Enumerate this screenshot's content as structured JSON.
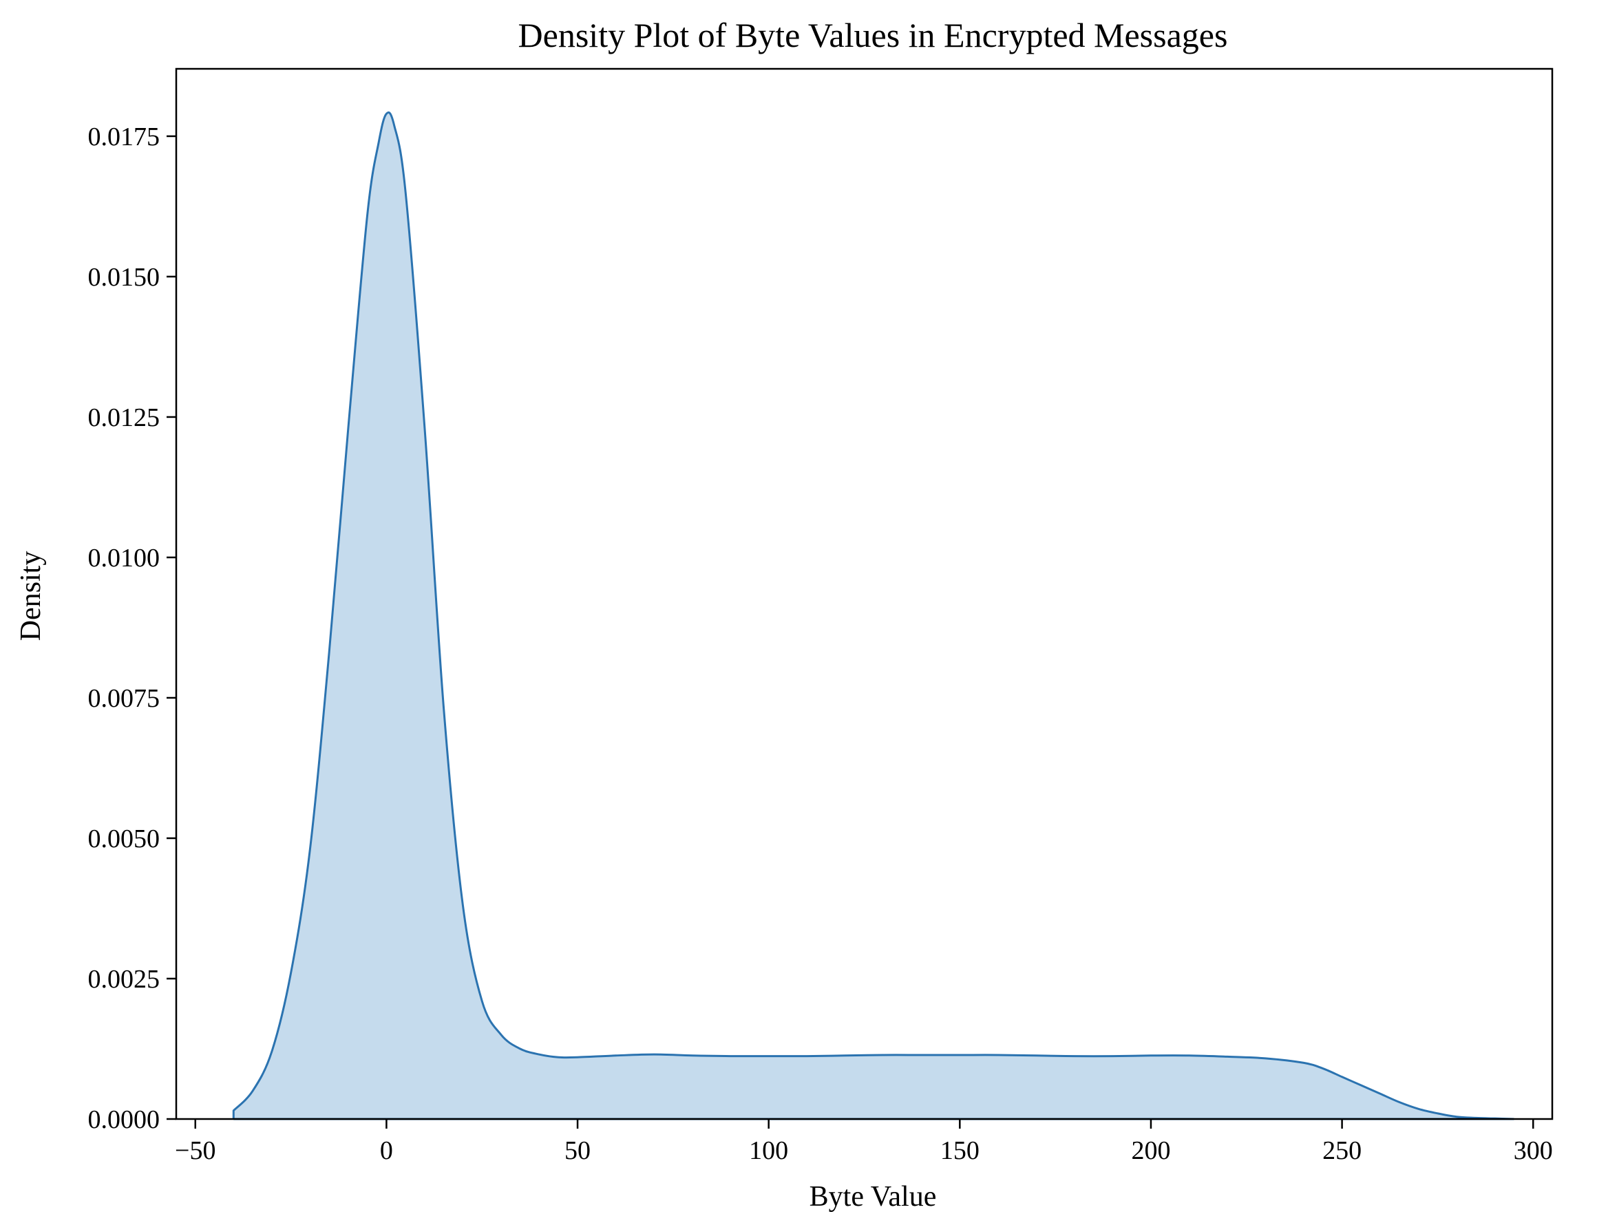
{
  "chart_data": {
    "type": "area",
    "title": "Density Plot of Byte Values in Encrypted Messages",
    "xlabel": "Byte Value",
    "ylabel": "Density",
    "xlim": [
      -55,
      305
    ],
    "ylim": [
      0,
      0.0187
    ],
    "x_ticks": [
      -50,
      0,
      50,
      100,
      150,
      200,
      250,
      300
    ],
    "x_tick_labels": [
      "−50",
      "0",
      "50",
      "100",
      "150",
      "200",
      "250",
      "300"
    ],
    "y_ticks": [
      0,
      0.0025,
      0.005,
      0.0075,
      0.01,
      0.0125,
      0.015,
      0.0175
    ],
    "y_tick_labels": [
      "0.0000",
      "0.0025",
      "0.0050",
      "0.0075",
      "0.0100",
      "0.0125",
      "0.0150",
      "0.0175"
    ],
    "grid": false,
    "legend": "none",
    "colors": {
      "line": "#2b73b0",
      "fill": "#c5dbed",
      "axis": "#000000"
    },
    "series": [
      {
        "x": [
          -40,
          -35,
          -30,
          -25,
          -20,
          -15,
          -10,
          -5,
          -2,
          0,
          2,
          5,
          10,
          15,
          20,
          25,
          30,
          35,
          40,
          45,
          50,
          60,
          70,
          80,
          90,
          100,
          110,
          120,
          130,
          140,
          150,
          160,
          170,
          180,
          190,
          200,
          210,
          220,
          230,
          240,
          245,
          250,
          255,
          260,
          265,
          270,
          275,
          280,
          285,
          290,
          295
        ],
        "y": [
          0.00015,
          0.0005,
          0.0012,
          0.0026,
          0.0048,
          0.0083,
          0.0123,
          0.0161,
          0.0174,
          0.0179,
          0.0177,
          0.0165,
          0.0123,
          0.0073,
          0.0038,
          0.0021,
          0.0015,
          0.00125,
          0.00115,
          0.0011,
          0.0011,
          0.00113,
          0.00115,
          0.00113,
          0.00112,
          0.00112,
          0.00112,
          0.00113,
          0.00114,
          0.00114,
          0.00114,
          0.00114,
          0.00113,
          0.00112,
          0.00112,
          0.00113,
          0.00113,
          0.00111,
          0.00108,
          0.001,
          0.0009,
          0.00075,
          0.0006,
          0.00045,
          0.0003,
          0.00018,
          0.0001,
          4e-05,
          2e-05,
          1e-05,
          0.0
        ]
      }
    ]
  }
}
